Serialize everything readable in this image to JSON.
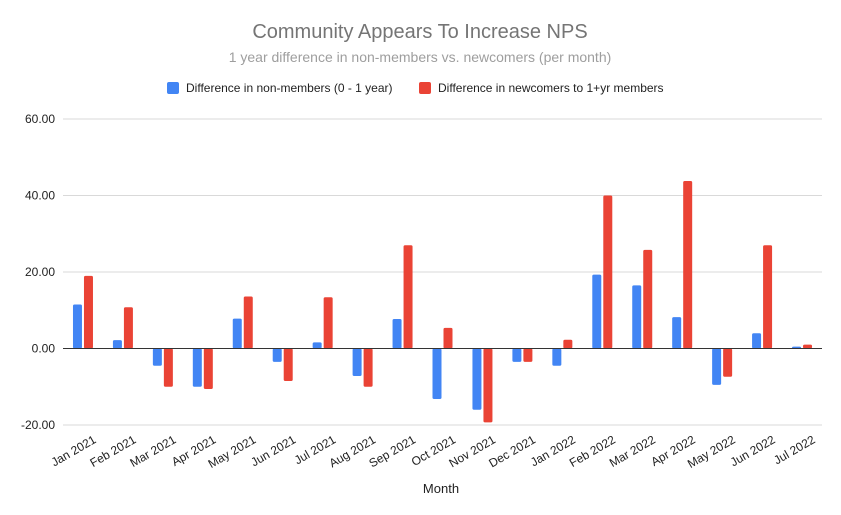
{
  "chart_data": {
    "type": "bar",
    "title": "Community Appears To Increase NPS",
    "subtitle": "1 year difference in non-members vs. newcomers (per month)",
    "xlabel": "Month",
    "ylabel": "",
    "ylim": [
      -20,
      60
    ],
    "yticks": [
      -20,
      0,
      20,
      40,
      60
    ],
    "ytick_labels": [
      "-20.00",
      "0.00",
      "20.00",
      "40.00",
      "60.00"
    ],
    "grid": true,
    "legend_position": "top",
    "categories": [
      "Jan 2021",
      "Feb 2021",
      "Mar 2021",
      "Apr 2021",
      "May 2021",
      "Jun 2021",
      "Jul 2021",
      "Aug 2021",
      "Sep 2021",
      "Oct 2021",
      "Nov 2021",
      "Dec 2021",
      "Jan 2022",
      "Feb 2022",
      "Mar 2022",
      "Apr 2022",
      "May 2022",
      "Jun 2022",
      "Jul 2022"
    ],
    "series": [
      {
        "name": "Difference in non-members (0 - 1 year)",
        "color": "#4285f4",
        "values": [
          11.5,
          2.2,
          -4.5,
          -10.0,
          7.8,
          -3.5,
          1.6,
          -7.2,
          7.7,
          -13.2,
          -16.0,
          -3.5,
          -4.5,
          19.3,
          16.5,
          8.2,
          -9.5,
          4.0,
          0.5
        ]
      },
      {
        "name": "Difference in newcomers to 1+yr members",
        "color": "#ea4335",
        "values": [
          19.0,
          10.8,
          -10.0,
          -10.6,
          13.6,
          -8.5,
          13.4,
          -10.0,
          27.0,
          5.4,
          -19.3,
          -3.5,
          2.3,
          40.0,
          25.8,
          43.8,
          -7.4,
          27.0,
          1.0
        ]
      }
    ]
  }
}
